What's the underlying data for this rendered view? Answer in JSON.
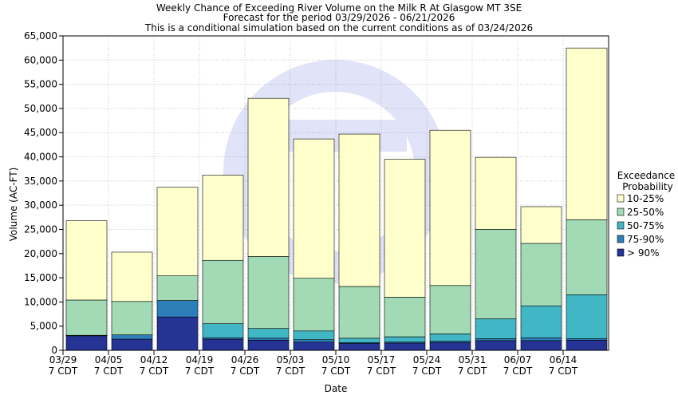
{
  "chart_data": {
    "type": "bar",
    "stacked": true,
    "title": "Weekly Chance of Exceeding River Volume on the Milk R At Glasgow MT 3SE",
    "subtitle": "Forecast for the period 03/29/2026 - 06/21/2026",
    "subtitle2": "This is a conditional simulation based on the current conditions as of 03/24/2026",
    "xlabel": "Date",
    "ylabel": "Volume (AC-FT)",
    "ylim": [
      0,
      65000
    ],
    "yticks": [
      0,
      5000,
      10000,
      15000,
      20000,
      25000,
      30000,
      35000,
      40000,
      45000,
      50000,
      55000,
      60000,
      65000
    ],
    "ytick_labels": [
      "0",
      "5,000",
      "10,000",
      "15,000",
      "20,000",
      "25,000",
      "30,000",
      "35,000",
      "40,000",
      "45,000",
      "50,000",
      "55,000",
      "60,000",
      "65,000"
    ],
    "categories": [
      "03/29",
      "04/05",
      "04/12",
      "04/19",
      "04/26",
      "05/03",
      "05/10",
      "05/17",
      "05/24",
      "05/31",
      "06/07",
      "06/14"
    ],
    "category_sublabel": "7 CDT",
    "legend_title_line1": "Exceedance",
    "legend_title_line2": "Probability",
    "legend_position": "right",
    "grid": true,
    "series": [
      {
        "name": "> 90%",
        "color": "#253494",
        "values": [
          3000,
          2300,
          6900,
          2300,
          2100,
          1700,
          1400,
          1500,
          1600,
          2000,
          2000,
          2100
        ]
      },
      {
        "name": "75-90%",
        "color": "#2c7fb8",
        "upper": [
          3100,
          3200,
          10300,
          2600,
          2500,
          2200,
          1600,
          1700,
          1900,
          2400,
          2600,
          2400
        ]
      },
      {
        "name": "50-75%",
        "color": "#41b6c4",
        "upper": [
          3100,
          3200,
          10300,
          5500,
          4500,
          4000,
          2500,
          2800,
          3400,
          6500,
          9200,
          11500
        ]
      },
      {
        "name": "25-50%",
        "color": "#a1dab4",
        "upper": [
          10400,
          10100,
          15400,
          18600,
          19400,
          14900,
          13200,
          11000,
          13400,
          25000,
          22100,
          27000
        ]
      },
      {
        "name": "10-25%",
        "color": "#ffffcc",
        "upper": [
          26800,
          20300,
          33700,
          36200,
          52100,
          43700,
          44700,
          39500,
          45500,
          39900,
          29700,
          62500
        ]
      }
    ]
  }
}
